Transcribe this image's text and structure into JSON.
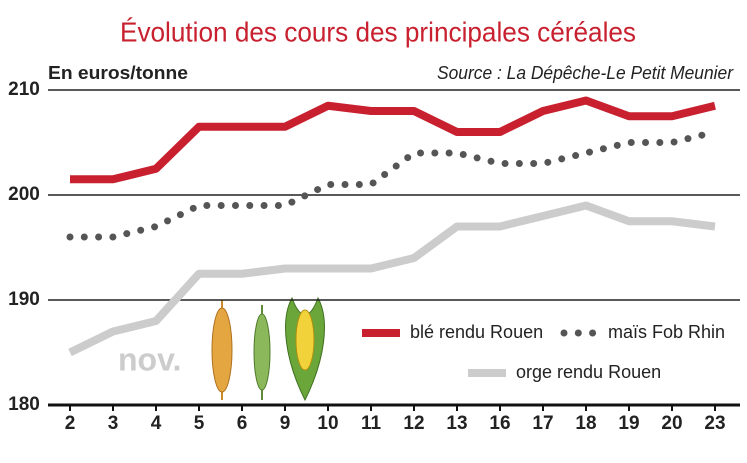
{
  "chart_data": {
    "type": "line",
    "title": "Évolution des cours des principales céréales",
    "y_label": "En euros/tonne",
    "source": "Source : La Dépêche-Le Petit Meunier",
    "annotation": "nov.",
    "categories": [
      "2",
      "3",
      "4",
      "5",
      "6",
      "9",
      "10",
      "11",
      "12",
      "13",
      "16",
      "17",
      "18",
      "19",
      "20",
      "23"
    ],
    "series": [
      {
        "name": "blé rendu Rouen",
        "color": "#c8202f",
        "style": "solid",
        "values": [
          201.5,
          201.5,
          202.5,
          206.5,
          206.5,
          206.5,
          208.5,
          208,
          208,
          206,
          206,
          208,
          209,
          207.5,
          207.5,
          208.5
        ]
      },
      {
        "name": "maïs Fob Rhin",
        "color": "#555555",
        "style": "dotted",
        "values": [
          196,
          196,
          197,
          199,
          199,
          199,
          201,
          201,
          204,
          204,
          203,
          203,
          204,
          205,
          205,
          206
        ]
      },
      {
        "name": "orge rendu Rouen",
        "color": "#cccccc",
        "style": "solid",
        "values": [
          185,
          187,
          188,
          192.5,
          192.5,
          193,
          193,
          193,
          194,
          197,
          197,
          198,
          199,
          197.5,
          197.5,
          197
        ]
      }
    ],
    "ylim": [
      180,
      210
    ],
    "yticks": [
      180,
      190,
      200,
      210
    ],
    "grid": true,
    "legend": "lower right"
  }
}
